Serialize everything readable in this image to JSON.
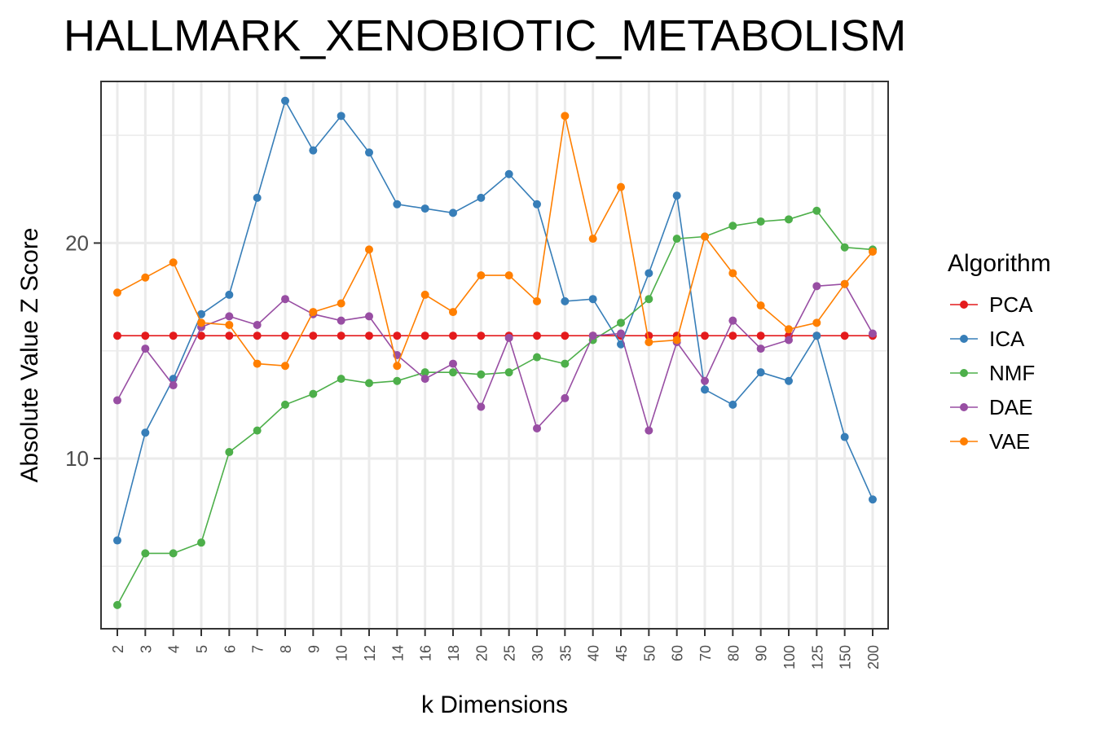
{
  "chart_data": {
    "type": "line",
    "title": "HALLMARK_XENOBIOTIC_METABOLISM",
    "xlabel": "k Dimensions",
    "ylabel": "Absolute Value Z Score",
    "categories": [
      "2",
      "3",
      "4",
      "5",
      "6",
      "7",
      "8",
      "9",
      "10",
      "12",
      "14",
      "16",
      "18",
      "20",
      "25",
      "30",
      "35",
      "40",
      "45",
      "50",
      "60",
      "70",
      "80",
      "90",
      "100",
      "125",
      "150",
      "200"
    ],
    "yticks": [
      10,
      20
    ],
    "ylim": [
      2.1,
      27.5
    ],
    "grid": true,
    "legend": {
      "title": "Algorithm",
      "position": "right"
    },
    "series": [
      {
        "name": "PCA",
        "color": "#E41A1C",
        "values": [
          15.7,
          15.7,
          15.7,
          15.7,
          15.7,
          15.7,
          15.7,
          15.7,
          15.7,
          15.7,
          15.7,
          15.7,
          15.7,
          15.7,
          15.7,
          15.7,
          15.7,
          15.7,
          15.7,
          15.7,
          15.7,
          15.7,
          15.7,
          15.7,
          15.7,
          15.7,
          15.7,
          15.7
        ]
      },
      {
        "name": "ICA",
        "color": "#377EB8",
        "values": [
          6.2,
          11.2,
          13.7,
          16.7,
          17.6,
          22.1,
          26.6,
          24.3,
          25.9,
          24.2,
          21.8,
          21.6,
          21.4,
          22.1,
          23.2,
          21.8,
          17.3,
          17.4,
          15.3,
          18.6,
          22.2,
          13.2,
          12.5,
          14.0,
          13.6,
          15.7,
          11.0,
          8.1
        ]
      },
      {
        "name": "NMF",
        "color": "#4DAF4A",
        "values": [
          3.2,
          5.6,
          5.6,
          6.1,
          10.3,
          11.3,
          12.5,
          13.0,
          13.7,
          13.5,
          13.6,
          14.0,
          14.0,
          13.9,
          14.0,
          14.7,
          14.4,
          15.5,
          16.3,
          17.4,
          20.2,
          20.3,
          20.8,
          21.0,
          21.1,
          21.5,
          19.8,
          19.7
        ]
      },
      {
        "name": "DAE",
        "color": "#984EA3",
        "values": [
          12.7,
          15.1,
          13.4,
          16.1,
          16.6,
          16.2,
          17.4,
          16.7,
          16.4,
          16.6,
          14.8,
          13.7,
          14.4,
          12.4,
          15.6,
          11.4,
          12.8,
          15.7,
          15.8,
          11.3,
          15.4,
          13.6,
          16.4,
          15.1,
          15.5,
          18.0,
          18.1,
          15.8
        ]
      },
      {
        "name": "VAE",
        "color": "#FF7F00",
        "values": [
          17.7,
          18.4,
          19.1,
          16.3,
          16.2,
          14.4,
          14.3,
          16.8,
          17.2,
          19.7,
          14.3,
          17.6,
          16.8,
          18.5,
          18.5,
          17.3,
          25.9,
          20.2,
          22.6,
          15.4,
          15.5,
          20.3,
          18.6,
          17.1,
          16.0,
          16.3,
          18.1,
          19.6
        ]
      }
    ]
  }
}
